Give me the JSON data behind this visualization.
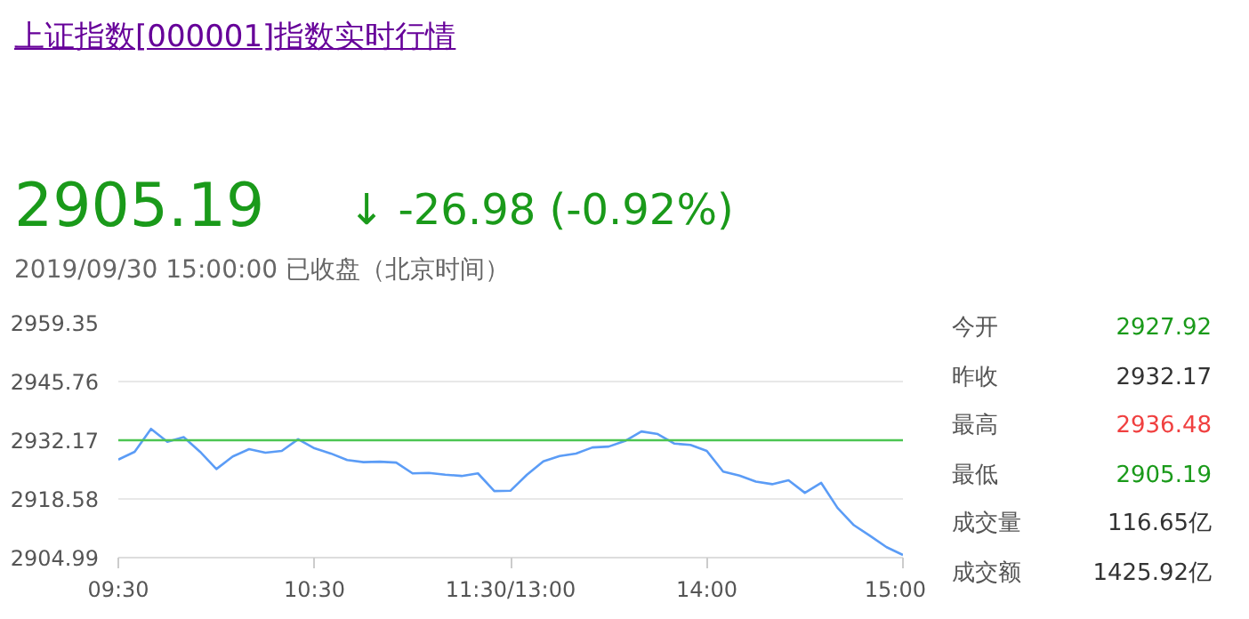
{
  "chart_data": {
    "type": "line",
    "title": "上证指数[000001]指数实时行情",
    "annotations": [
      "2905.19",
      "↓ -26.98 (-0.92%)",
      "2019/09/30 15:00:00  已收盘（北京时间）",
      "今开",
      "2927.92",
      "昨收",
      "2932.17",
      "最高",
      "2936.48",
      "最低",
      "2905.19",
      "成交量",
      "116.65亿",
      "成交额",
      "1425.92亿"
    ],
    "categories": [
      "09:30",
      null,
      null,
      null,
      null,
      null,
      null,
      null,
      null,
      null,
      null,
      null,
      "10:30",
      null,
      null,
      null,
      null,
      null,
      null,
      null,
      null,
      null,
      null,
      null,
      "11:30/13:00",
      null,
      null,
      null,
      null,
      null,
      null,
      null,
      null,
      null,
      null,
      null,
      "14:00",
      null,
      null,
      null,
      null,
      null,
      null,
      null,
      null,
      null,
      null,
      null,
      "15:00"
    ],
    "series": [
      {
        "color": "#5b9cf6",
        "values": [
          2927.7,
          2929.5,
          2934.8,
          2931.8,
          2932.9,
          2929.5,
          2925.5,
          2928.4,
          2930.1,
          2929.3,
          2929.7,
          2932.4,
          2930.3,
          2929.1,
          2927.6,
          2927.1,
          2927.2,
          2927.0,
          2924.5,
          2924.6,
          2924.2,
          2923.9,
          2924.5,
          2920.4,
          2920.5,
          2924.2,
          2927.3,
          2928.5,
          2929.1,
          2930.5,
          2930.7,
          2932.0,
          2934.2,
          2933.6,
          2931.4,
          2931.1,
          2929.7,
          2924.9,
          2924.0,
          2922.6,
          2922.0,
          2922.9,
          2920.0,
          2922.3,
          2916.5,
          2912.5,
          2910.0,
          2907.4,
          2905.6
        ]
      }
    ],
    "ylim": [
      2904.99,
      2959.35
    ],
    "yticks": [
      2904.99,
      2918.58,
      2932.17,
      2945.76,
      2959.35
    ],
    "grid": "y",
    "ref_lines": [
      {
        "axis": "y",
        "value": 2932.17,
        "color": "#4cc552"
      }
    ]
  }
}
